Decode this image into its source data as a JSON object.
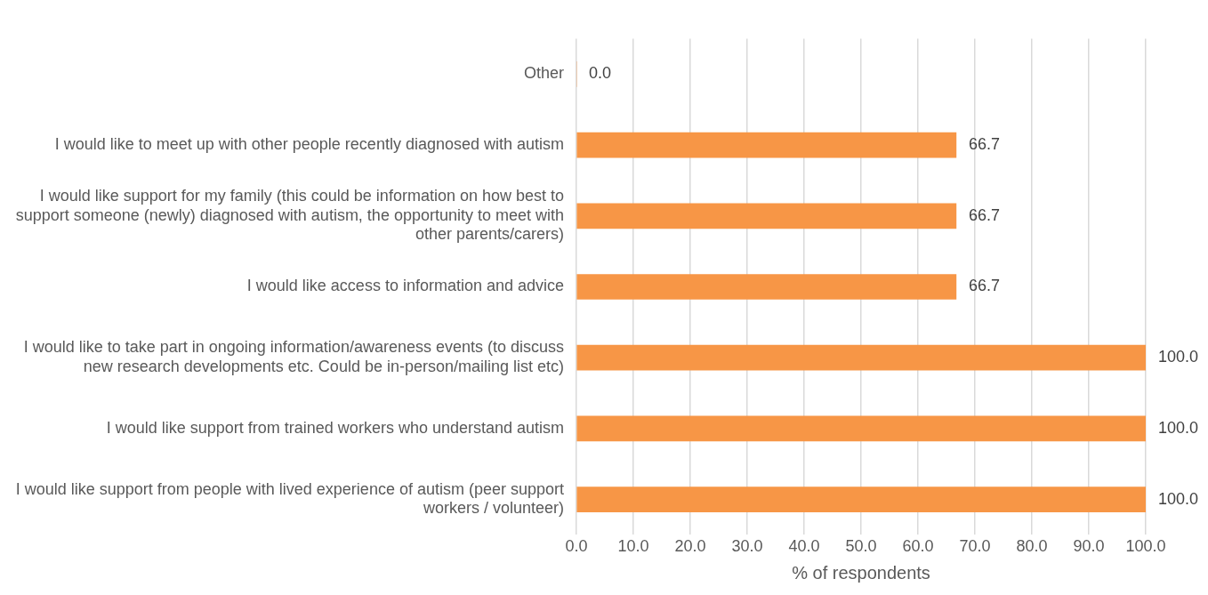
{
  "chart_data": {
    "type": "bar",
    "orientation": "horizontal",
    "xlabel": "% of respondents",
    "categories": [
      "Other",
      "I would like to meet up with other people recently diagnosed with autism",
      "I would like support for my family (this could be information on how best to support someone (newly) diagnosed with autism, the opportunity to meet with other parents/carers)",
      "I would like access to information and advice",
      "I would like to take part in ongoing information/awareness events (to discuss new research developments etc. Could be in-person/mailing list etc)",
      "I would like support from trained workers who understand autism",
      "I would like support from people with lived experience of autism (peer support workers / volunteer)"
    ],
    "values": [
      0,
      66.7,
      66.7,
      66.7,
      100,
      100,
      100
    ],
    "value_labels": [
      "0.0",
      "66.7",
      "66.7",
      "66.7",
      "100.0",
      "100.0",
      "100.0"
    ],
    "color": "#f79646",
    "xlim": [
      0,
      100
    ],
    "xticks": [
      {
        "value": 0,
        "label": "0.0"
      },
      {
        "value": 10,
        "label": "10.0"
      },
      {
        "value": 20,
        "label": "20.0"
      },
      {
        "value": 30,
        "label": "30.0"
      },
      {
        "value": 40,
        "label": "40.0"
      },
      {
        "value": 50,
        "label": "50.0"
      },
      {
        "value": 60,
        "label": "60.0"
      },
      {
        "value": 70,
        "label": "70.0"
      },
      {
        "value": 80,
        "label": "80.0"
      },
      {
        "value": 90,
        "label": "90.0"
      },
      {
        "value": 100,
        "label": "100.0"
      }
    ],
    "grid": "x",
    "legend": false
  }
}
